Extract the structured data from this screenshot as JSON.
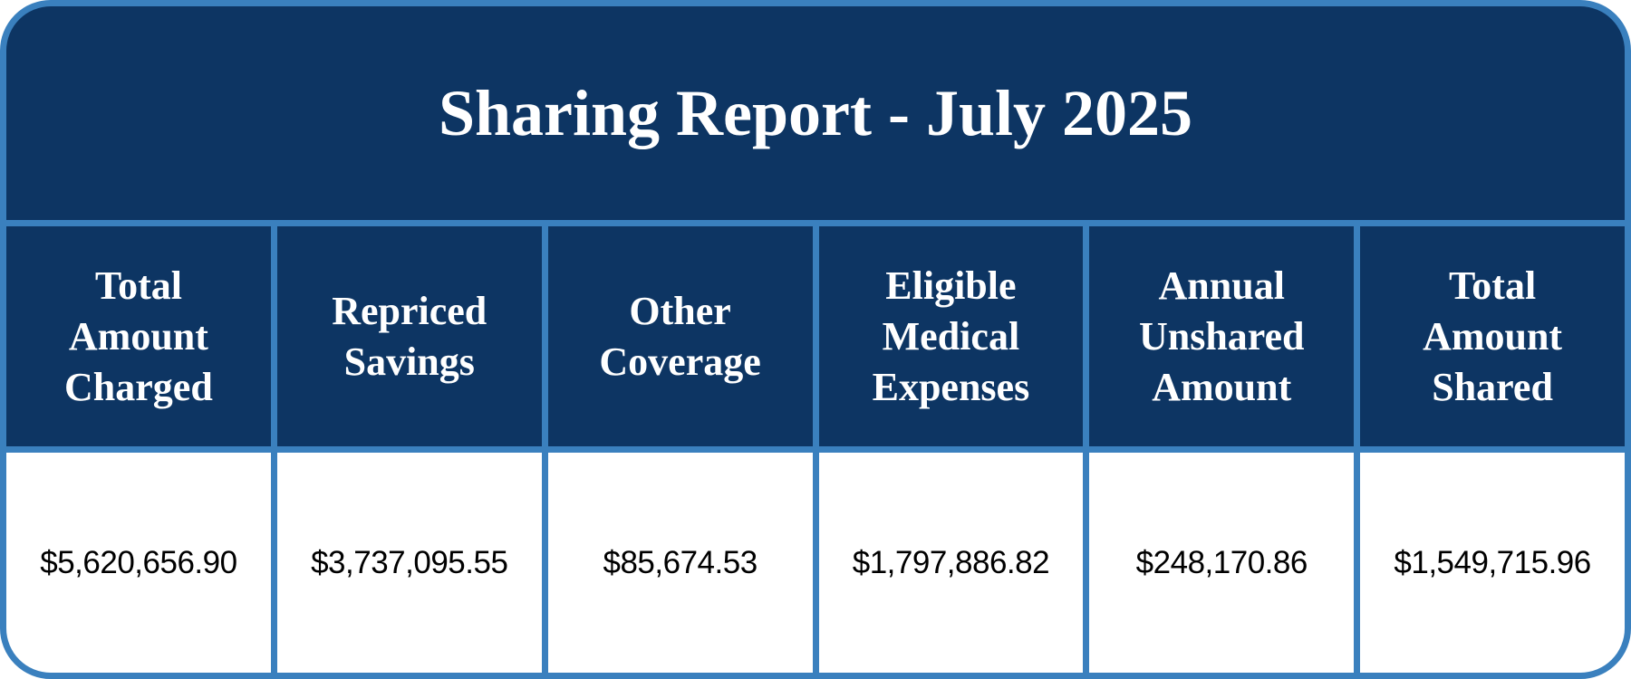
{
  "title": "Sharing Report - July 2025",
  "colors": {
    "header_bg": "#0d3563",
    "border": "#3a80be",
    "cell_bg": "#ffffff"
  },
  "columns": [
    {
      "header": "Total Amount Charged",
      "value": "$5,620,656.90"
    },
    {
      "header": "Repriced Savings",
      "value": "$3,737,095.55"
    },
    {
      "header": "Other Coverage",
      "value": "$85,674.53"
    },
    {
      "header": "Eligible Medical Expenses",
      "value": "$1,797,886.82"
    },
    {
      "header": "Annual Unshared Amount",
      "value": "$248,170.86"
    },
    {
      "header": "Total Amount Shared",
      "value": "$1,549,715.96"
    }
  ]
}
